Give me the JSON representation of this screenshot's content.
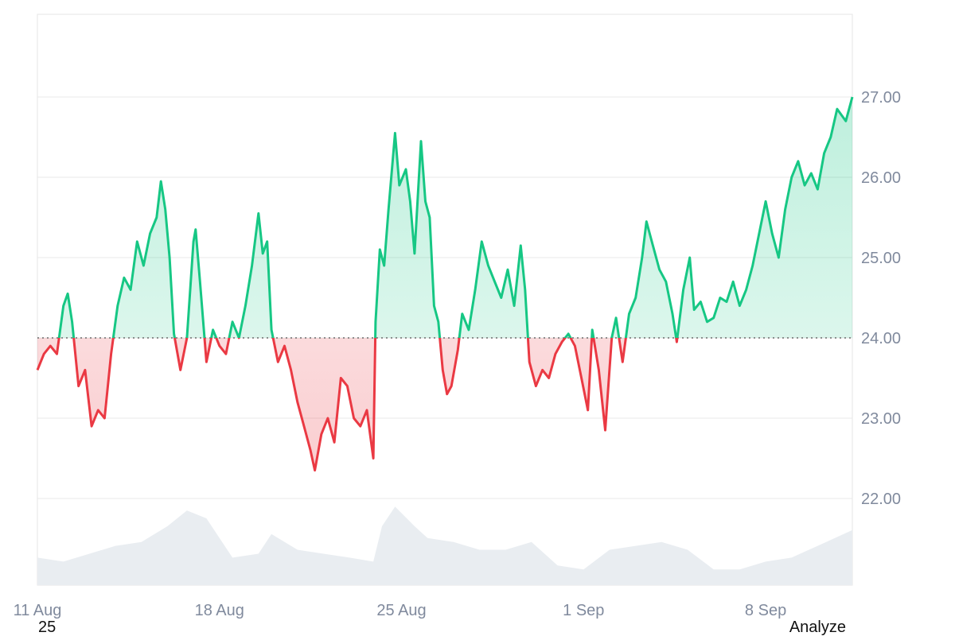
{
  "chart_data": {
    "type": "line",
    "baseline": 24.0,
    "ylim": [
      21.0,
      28.0
    ],
    "y_ticks": [
      {
        "value": 22.0,
        "label": "22.00"
      },
      {
        "value": 23.0,
        "label": "23.00"
      },
      {
        "value": 24.0,
        "label": "24.00"
      },
      {
        "value": 25.0,
        "label": "25.00"
      },
      {
        "value": 26.0,
        "label": "26.00"
      },
      {
        "value": 27.0,
        "label": "27.00"
      }
    ],
    "x_ticks": [
      {
        "date": "2025-08-11",
        "label": "11 Aug"
      },
      {
        "date": "2025-08-18",
        "label": "18 Aug"
      },
      {
        "date": "2025-08-25",
        "label": "25 Aug"
      },
      {
        "date": "2025-09-01",
        "label": "1 Sep"
      },
      {
        "date": "2025-09-08",
        "label": "8 Sep"
      }
    ],
    "xlim": [
      "2025-08-11T00:00",
      "2025-09-11T08:00"
    ],
    "colors": {
      "up": "#16c784",
      "down": "#ea3943",
      "volume": "#e9edf1",
      "grid": "#e8e8e8",
      "baseline": "#6b6b6b",
      "axis_text": "#808a9d"
    },
    "series": [
      {
        "values": [
          [
            "2025-08-11T00:00",
            23.6
          ],
          [
            "2025-08-11T06:00",
            23.8
          ],
          [
            "2025-08-11T12:00",
            23.9
          ],
          [
            "2025-08-11T18:00",
            23.8
          ],
          [
            "2025-08-12T00:00",
            24.4
          ],
          [
            "2025-08-12T04:00",
            24.55
          ],
          [
            "2025-08-12T08:00",
            24.2
          ],
          [
            "2025-08-12T14:00",
            23.4
          ],
          [
            "2025-08-12T20:00",
            23.6
          ],
          [
            "2025-08-13T02:00",
            22.9
          ],
          [
            "2025-08-13T08:00",
            23.1
          ],
          [
            "2025-08-13T14:00",
            23.0
          ],
          [
            "2025-08-13T20:00",
            23.8
          ],
          [
            "2025-08-14T02:00",
            24.4
          ],
          [
            "2025-08-14T08:00",
            24.75
          ],
          [
            "2025-08-14T14:00",
            24.6
          ],
          [
            "2025-08-14T20:00",
            25.2
          ],
          [
            "2025-08-15T02:00",
            24.9
          ],
          [
            "2025-08-15T08:00",
            25.3
          ],
          [
            "2025-08-15T14:00",
            25.5
          ],
          [
            "2025-08-15T18:00",
            25.95
          ],
          [
            "2025-08-15T22:00",
            25.6
          ],
          [
            "2025-08-16T02:00",
            25.0
          ],
          [
            "2025-08-16T06:00",
            24.05
          ],
          [
            "2025-08-16T12:00",
            23.6
          ],
          [
            "2025-08-16T18:00",
            24.0
          ],
          [
            "2025-08-17T00:00",
            25.2
          ],
          [
            "2025-08-17T02:00",
            25.35
          ],
          [
            "2025-08-17T06:00",
            24.7
          ],
          [
            "2025-08-17T12:00",
            23.7
          ],
          [
            "2025-08-17T18:00",
            24.1
          ],
          [
            "2025-08-18T00:00",
            23.9
          ],
          [
            "2025-08-18T06:00",
            23.8
          ],
          [
            "2025-08-18T12:00",
            24.2
          ],
          [
            "2025-08-18T18:00",
            24.0
          ],
          [
            "2025-08-19T00:00",
            24.4
          ],
          [
            "2025-08-19T06:00",
            24.9
          ],
          [
            "2025-08-19T12:00",
            25.55
          ],
          [
            "2025-08-19T16:00",
            25.05
          ],
          [
            "2025-08-19T20:00",
            25.2
          ],
          [
            "2025-08-20T00:00",
            24.1
          ],
          [
            "2025-08-20T06:00",
            23.7
          ],
          [
            "2025-08-20T12:00",
            23.9
          ],
          [
            "2025-08-20T18:00",
            23.6
          ],
          [
            "2025-08-21T00:00",
            23.2
          ],
          [
            "2025-08-21T06:00",
            22.9
          ],
          [
            "2025-08-21T12:00",
            22.6
          ],
          [
            "2025-08-21T16:00",
            22.35
          ],
          [
            "2025-08-21T22:00",
            22.8
          ],
          [
            "2025-08-22T04:00",
            23.0
          ],
          [
            "2025-08-22T10:00",
            22.7
          ],
          [
            "2025-08-22T16:00",
            23.5
          ],
          [
            "2025-08-22T22:00",
            23.4
          ],
          [
            "2025-08-23T04:00",
            23.0
          ],
          [
            "2025-08-23T10:00",
            22.9
          ],
          [
            "2025-08-23T16:00",
            23.1
          ],
          [
            "2025-08-23T22:00",
            22.5
          ],
          [
            "2025-08-24T00:00",
            24.2
          ],
          [
            "2025-08-24T04:00",
            25.1
          ],
          [
            "2025-08-24T08:00",
            24.9
          ],
          [
            "2025-08-24T12:00",
            25.6
          ],
          [
            "2025-08-24T18:00",
            26.55
          ],
          [
            "2025-08-24T22:00",
            25.9
          ],
          [
            "2025-08-25T04:00",
            26.1
          ],
          [
            "2025-08-25T08:00",
            25.7
          ],
          [
            "2025-08-25T12:00",
            25.05
          ],
          [
            "2025-08-25T18:00",
            26.45
          ],
          [
            "2025-08-25T22:00",
            25.7
          ],
          [
            "2025-08-26T02:00",
            25.5
          ],
          [
            "2025-08-26T06:00",
            24.4
          ],
          [
            "2025-08-26T10:00",
            24.2
          ],
          [
            "2025-08-26T14:00",
            23.6
          ],
          [
            "2025-08-26T18:00",
            23.3
          ],
          [
            "2025-08-26T22:00",
            23.4
          ],
          [
            "2025-08-27T04:00",
            23.85
          ],
          [
            "2025-08-27T08:00",
            24.3
          ],
          [
            "2025-08-27T14:00",
            24.1
          ],
          [
            "2025-08-27T20:00",
            24.6
          ],
          [
            "2025-08-28T02:00",
            25.2
          ],
          [
            "2025-08-28T08:00",
            24.9
          ],
          [
            "2025-08-28T14:00",
            24.7
          ],
          [
            "2025-08-28T20:00",
            24.5
          ],
          [
            "2025-08-29T02:00",
            24.85
          ],
          [
            "2025-08-29T08:00",
            24.4
          ],
          [
            "2025-08-29T14:00",
            25.15
          ],
          [
            "2025-08-29T18:00",
            24.6
          ],
          [
            "2025-08-29T22:00",
            23.7
          ],
          [
            "2025-08-30T04:00",
            23.4
          ],
          [
            "2025-08-30T10:00",
            23.6
          ],
          [
            "2025-08-30T16:00",
            23.5
          ],
          [
            "2025-08-30T22:00",
            23.8
          ],
          [
            "2025-08-31T04:00",
            23.95
          ],
          [
            "2025-08-31T10:00",
            24.05
          ],
          [
            "2025-08-31T16:00",
            23.9
          ],
          [
            "2025-08-31T22:00",
            23.5
          ],
          [
            "2025-09-01T04:00",
            23.1
          ],
          [
            "2025-09-01T08:00",
            24.1
          ],
          [
            "2025-09-01T14:00",
            23.6
          ],
          [
            "2025-09-01T20:00",
            22.85
          ],
          [
            "2025-09-02T02:00",
            24.0
          ],
          [
            "2025-09-02T06:00",
            24.25
          ],
          [
            "2025-09-02T12:00",
            23.7
          ],
          [
            "2025-09-02T18:00",
            24.3
          ],
          [
            "2025-09-03T00:00",
            24.5
          ],
          [
            "2025-09-03T06:00",
            25.0
          ],
          [
            "2025-09-03T10:00",
            25.45
          ],
          [
            "2025-09-03T16:00",
            25.15
          ],
          [
            "2025-09-03T22:00",
            24.85
          ],
          [
            "2025-09-04T04:00",
            24.7
          ],
          [
            "2025-09-04T10:00",
            24.3
          ],
          [
            "2025-09-04T14:00",
            23.95
          ],
          [
            "2025-09-04T20:00",
            24.6
          ],
          [
            "2025-09-05T02:00",
            25.0
          ],
          [
            "2025-09-05T06:00",
            24.35
          ],
          [
            "2025-09-05T12:00",
            24.45
          ],
          [
            "2025-09-05T18:00",
            24.2
          ],
          [
            "2025-09-06T00:00",
            24.25
          ],
          [
            "2025-09-06T06:00",
            24.5
          ],
          [
            "2025-09-06T12:00",
            24.45
          ],
          [
            "2025-09-06T18:00",
            24.7
          ],
          [
            "2025-09-07T00:00",
            24.4
          ],
          [
            "2025-09-07T06:00",
            24.6
          ],
          [
            "2025-09-07T12:00",
            24.9
          ],
          [
            "2025-09-07T18:00",
            25.3
          ],
          [
            "2025-09-08T00:00",
            25.7
          ],
          [
            "2025-09-08T06:00",
            25.3
          ],
          [
            "2025-09-08T12:00",
            25.0
          ],
          [
            "2025-09-08T18:00",
            25.6
          ],
          [
            "2025-09-09T00:00",
            26.0
          ],
          [
            "2025-09-09T06:00",
            26.2
          ],
          [
            "2025-09-09T12:00",
            25.9
          ],
          [
            "2025-09-09T18:00",
            26.05
          ],
          [
            "2025-09-10T00:00",
            25.85
          ],
          [
            "2025-09-10T06:00",
            26.3
          ],
          [
            "2025-09-10T12:00",
            26.5
          ],
          [
            "2025-09-10T18:00",
            26.85
          ],
          [
            "2025-09-11T02:00",
            26.7
          ],
          [
            "2025-09-11T08:00",
            27.0
          ]
        ]
      }
    ],
    "volume": [
      [
        "2025-08-11T00:00",
        0.35
      ],
      [
        "2025-08-12T00:00",
        0.3
      ],
      [
        "2025-08-13T00:00",
        0.4
      ],
      [
        "2025-08-14T00:00",
        0.5
      ],
      [
        "2025-08-15T00:00",
        0.55
      ],
      [
        "2025-08-16T00:00",
        0.75
      ],
      [
        "2025-08-16T18:00",
        0.95
      ],
      [
        "2025-08-17T12:00",
        0.85
      ],
      [
        "2025-08-18T12:00",
        0.35
      ],
      [
        "2025-08-19T12:00",
        0.4
      ],
      [
        "2025-08-20T00:00",
        0.65
      ],
      [
        "2025-08-21T00:00",
        0.45
      ],
      [
        "2025-08-22T00:00",
        0.4
      ],
      [
        "2025-08-23T00:00",
        0.35
      ],
      [
        "2025-08-23T22:00",
        0.3
      ],
      [
        "2025-08-24T06:00",
        0.75
      ],
      [
        "2025-08-24T18:00",
        1.0
      ],
      [
        "2025-08-25T12:00",
        0.75
      ],
      [
        "2025-08-26T00:00",
        0.6
      ],
      [
        "2025-08-27T00:00",
        0.55
      ],
      [
        "2025-08-28T00:00",
        0.45
      ],
      [
        "2025-08-29T00:00",
        0.45
      ],
      [
        "2025-08-30T00:00",
        0.55
      ],
      [
        "2025-08-31T00:00",
        0.25
      ],
      [
        "2025-09-01T00:00",
        0.2
      ],
      [
        "2025-09-02T00:00",
        0.45
      ],
      [
        "2025-09-03T00:00",
        0.5
      ],
      [
        "2025-09-04T00:00",
        0.55
      ],
      [
        "2025-09-05T00:00",
        0.45
      ],
      [
        "2025-09-06T00:00",
        0.2
      ],
      [
        "2025-09-07T00:00",
        0.2
      ],
      [
        "2025-09-08T00:00",
        0.3
      ],
      [
        "2025-09-09T00:00",
        0.35
      ],
      [
        "2025-09-10T00:00",
        0.5
      ],
      [
        "2025-09-11T08:00",
        0.7
      ]
    ]
  },
  "footer": {
    "left_text": "25",
    "right_text": "Analyze"
  }
}
